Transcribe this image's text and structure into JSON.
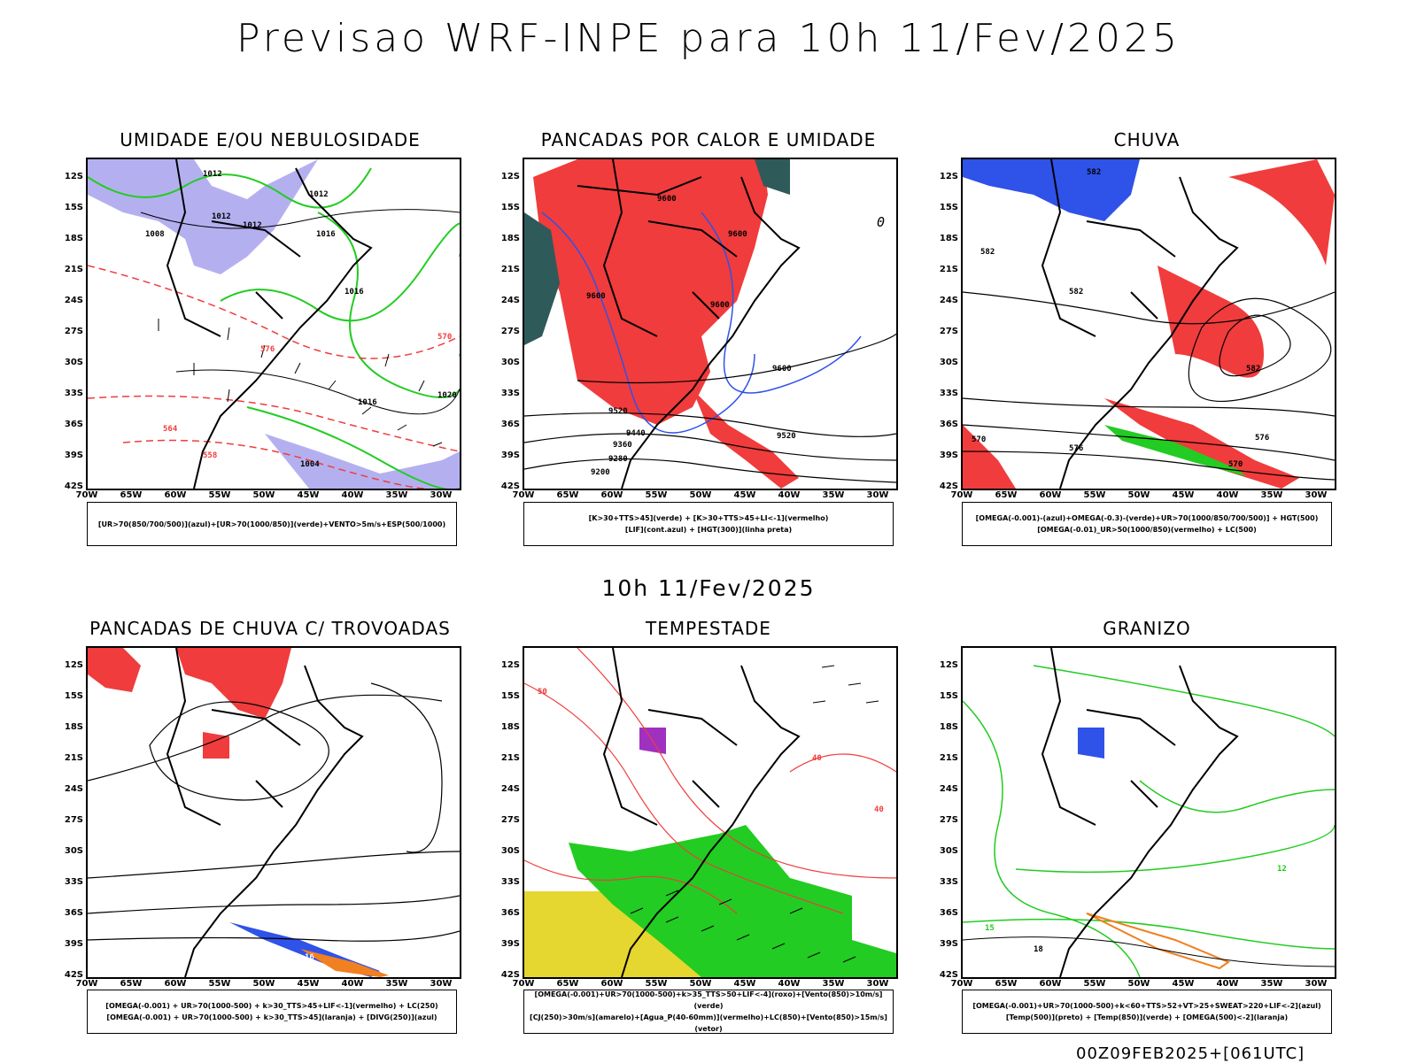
{
  "header": {
    "title": "Previsao WRF-INPE  para 10h 11/Fev/2025"
  },
  "middle": {
    "subtitle": "10h 11/Fev/2025"
  },
  "footer": {
    "run": "00Z09FEB2025+[061UTC]"
  },
  "axes": {
    "lat_labels": [
      "12S",
      "15S",
      "18S",
      "21S",
      "24S",
      "27S",
      "30S",
      "33S",
      "36S",
      "39S",
      "42S"
    ],
    "lon_labels": [
      "70W",
      "65W",
      "60W",
      "55W",
      "50W",
      "45W",
      "40W",
      "35W",
      "30W"
    ]
  },
  "colors": {
    "green": "#22cc22",
    "red": "#f03c3c",
    "blue": "#2f52e8",
    "lavender": "#b4b0f0",
    "orange": "#f08020",
    "yellow": "#e6d630",
    "purple": "#a030c0",
    "teal": "#2e5a5a"
  },
  "panels": [
    {
      "title": "UMIDADE E/OU NEBULOSIDADE",
      "legend": [
        "[UR>70(850/700/500)](azul)+[UR>70(1000/850)](verde)+VENTO>5m/s+ESP(500/1000)"
      ],
      "contour_labels": [
        "1012",
        "1012",
        "1012",
        "1012",
        "1016",
        "1016",
        "1008",
        "1016",
        "1020",
        "1004",
        "576",
        "570",
        "564",
        "558"
      ]
    },
    {
      "title": "PANCADAS POR CALOR E UMIDADE",
      "legend": [
        "[K>30+TTS>45](verde) + [K>30+TTS>45+LI<-1](vermelho)",
        "[LIF](cont.azul) + [HGT(300)](linha preta)"
      ],
      "contour_labels": [
        "9600",
        "9600",
        "9600",
        "9600",
        "9600",
        "9520",
        "9520",
        "9440",
        "9360",
        "9280",
        "9200",
        "0"
      ]
    },
    {
      "title": "CHUVA",
      "legend": [
        "[OMEGA(-0.001)-(azul)+OMEGA(-0.3)-(verde)+UR>70(1000/850/700/500)] + HGT(500)",
        "[OMEGA(-0.01)_UR>50(1000/850)(vermelho) + LC(500)"
      ],
      "contour_labels": [
        "582",
        "582",
        "582",
        "576",
        "570",
        "582",
        "576",
        "570"
      ]
    },
    {
      "title": "PANCADAS DE CHUVA C/ TROVOADAS",
      "legend": [
        "[OMEGA(-0.001) + UR>70(1000-500) + k>30_TTS>45+LIF<-1](vermelho) + LC(250)",
        "[OMEGA(-0.001) + UR>70(1000-500) + k>30_TTS>45](laranja) + [DIVG(250)](azul)"
      ],
      "contour_labels": [
        "16"
      ]
    },
    {
      "title": "TEMPESTADE",
      "legend": [
        "[OMEGA(-0.001)+UR>70(1000-500)+k>35_TTS>50+LIF<-4](roxo)+[Vento(850)>10m/s](verde)",
        "[CJ(250)>30m/s](amarelo)+[Agua_P(40-60mm)](vermelho)+LC(850)+[Vento(850)>15m/s](vetor)"
      ],
      "contour_labels": [
        "40",
        "40",
        "50"
      ]
    },
    {
      "title": "GRANIZO",
      "legend": [
        "[OMEGA(-0.001)+UR>70(1000-500)+k<60+TTS>52+VT>25+SWEAT>220+LIF<-2](azul)",
        "[Temp(500)](preto) + [Temp(850)](verde) + [OMEGA(500)<-2](laranja)"
      ],
      "contour_labels": [
        "12",
        "15",
        "18"
      ]
    }
  ]
}
